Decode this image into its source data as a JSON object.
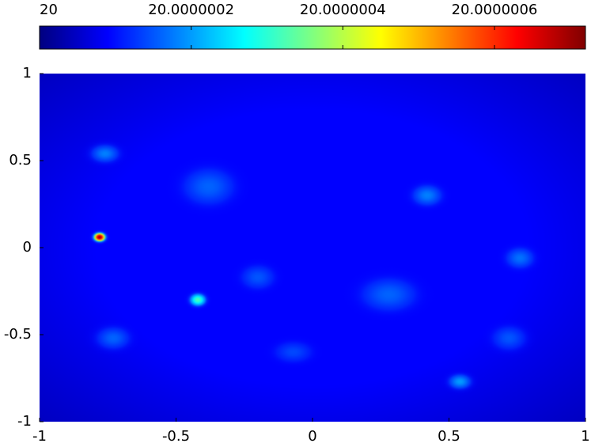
{
  "chart_data": {
    "type": "heatmap",
    "colormap": "jet",
    "clim": [
      20,
      20.00000072
    ],
    "cticks": [
      20,
      20.0000002,
      20.0000004,
      20.0000006
    ],
    "xlim": [
      -1,
      1
    ],
    "ylim": [
      -1,
      1
    ],
    "xticks": [
      -1,
      -0.5,
      0,
      0.5,
      1
    ],
    "yticks": [
      -1,
      -0.5,
      0,
      0.5,
      1
    ],
    "base": 20.00000009,
    "peaks": [
      {
        "x": -0.78,
        "y": 0.06,
        "value": 20.0000007
      },
      {
        "x": -0.42,
        "y": -0.3,
        "value": 20.00000032
      },
      {
        "x": 0.54,
        "y": -0.77,
        "value": 20.0000002
      },
      {
        "x": -0.76,
        "y": 0.54,
        "value": 20.00000018
      },
      {
        "x": 0.42,
        "y": 0.3,
        "value": 20.00000018
      },
      {
        "x": 0.76,
        "y": -0.06,
        "value": 20.00000017
      },
      {
        "x": -0.38,
        "y": 0.35,
        "value": 20.00000016
      },
      {
        "x": 0.28,
        "y": -0.27,
        "value": 20.00000016
      },
      {
        "x": -0.73,
        "y": -0.52,
        "value": 20.00000016
      },
      {
        "x": -0.2,
        "y": -0.17,
        "value": 20.00000015
      },
      {
        "x": 0.72,
        "y": -0.52,
        "value": 20.00000015
      },
      {
        "x": -0.07,
        "y": -0.6,
        "value": 20.00000014
      }
    ]
  }
}
